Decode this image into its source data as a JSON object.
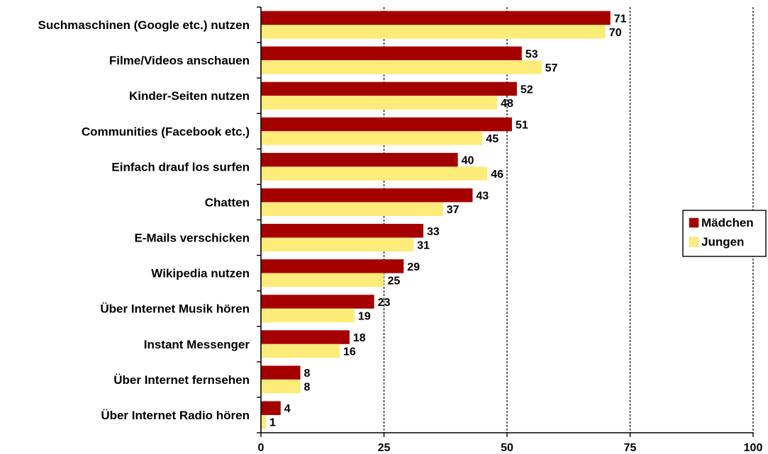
{
  "chart_data": {
    "type": "bar",
    "orientation": "horizontal",
    "categories": [
      "Suchmaschinen (Google etc.) nutzen",
      "Filme/Videos anschauen",
      "Kinder-Seiten nutzen",
      "Communities (Facebook etc.)",
      "Einfach drauf los surfen",
      "Chatten",
      "E-Mails verschicken",
      "Wikipedia nutzen",
      "Über Internet Musik hören",
      "Instant Messenger",
      "Über Internet fernsehen",
      "Über Internet Radio hören"
    ],
    "series": [
      {
        "name": "Mädchen",
        "color": "#a50000",
        "values": [
          71,
          53,
          52,
          51,
          40,
          43,
          33,
          29,
          23,
          18,
          8,
          4
        ]
      },
      {
        "name": "Jungen",
        "color": "#fdec7a",
        "values": [
          70,
          57,
          48,
          45,
          46,
          37,
          31,
          25,
          19,
          16,
          8,
          1
        ]
      }
    ],
    "xlim": [
      0,
      100
    ],
    "xticks": [
      "0",
      "25",
      "50",
      "75",
      "100"
    ],
    "grid": "vertical-dashed",
    "legend_position": "right"
  }
}
